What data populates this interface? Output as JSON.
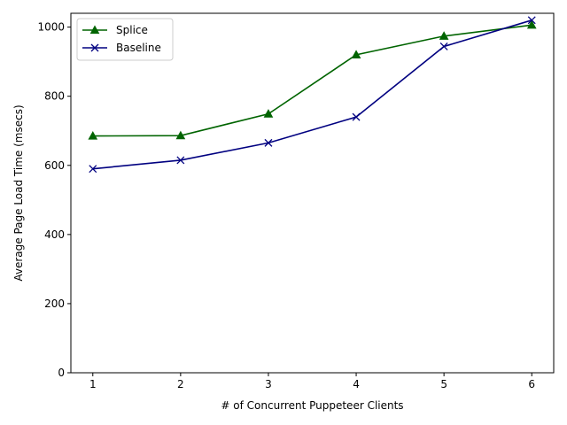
{
  "chart_data": {
    "type": "line",
    "title": "",
    "xlabel": "# of Concurrent Puppeteer Clients",
    "ylabel": "Average Page Load Time (msecs)",
    "x": [
      1,
      2,
      3,
      4,
      5,
      6
    ],
    "xlim": [
      0.75,
      6.25
    ],
    "ylim": [
      0,
      1040
    ],
    "xticks": [
      1,
      2,
      3,
      4,
      5,
      6
    ],
    "yticks": [
      0,
      200,
      400,
      600,
      800,
      1000
    ],
    "grid": false,
    "legend_position": "top-left",
    "series": [
      {
        "name": "Splice",
        "color": "#006400",
        "marker": "triangle",
        "values": [
          685,
          686,
          749,
          920,
          974,
          1006
        ]
      },
      {
        "name": "Baseline",
        "color": "#000080",
        "marker": "x",
        "values": [
          590,
          615,
          665,
          740,
          944,
          1020
        ]
      }
    ]
  }
}
